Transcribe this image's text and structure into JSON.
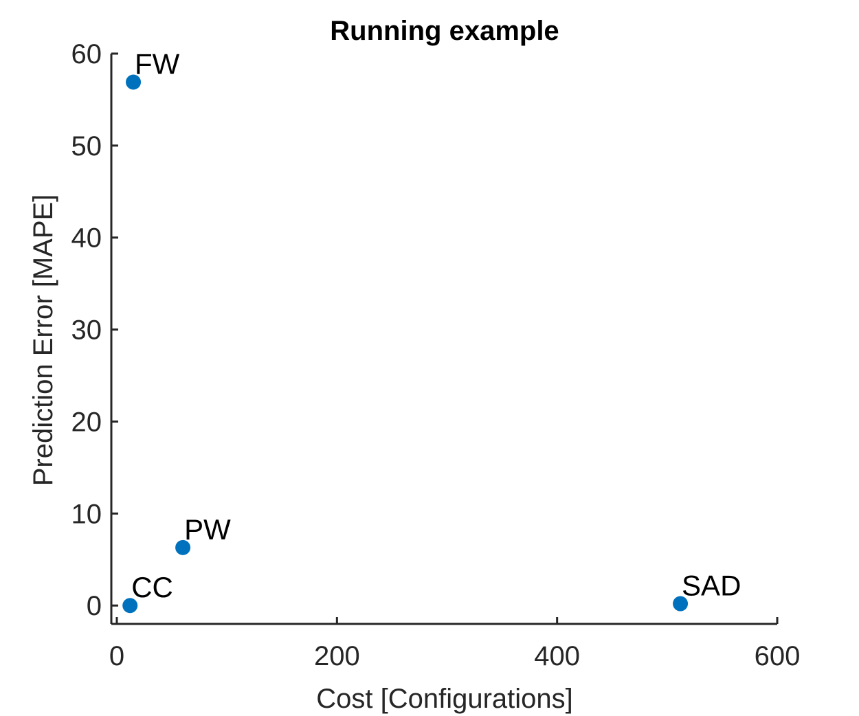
{
  "chart_data": {
    "type": "scatter",
    "title": "Running example",
    "xlabel": "Cost [Configurations]",
    "ylabel": "Prediction Error [MAPE]",
    "xlim": [
      -5,
      600
    ],
    "ylim": [
      -2,
      60
    ],
    "xticks": [
      0,
      200,
      400,
      600
    ],
    "yticks": [
      0,
      10,
      20,
      30,
      40,
      50,
      60
    ],
    "grid": false,
    "marker_color": "#0072BD",
    "points": [
      {
        "label": "FW",
        "x": 15,
        "y": 56.9
      },
      {
        "label": "PW",
        "x": 60,
        "y": 6.3
      },
      {
        "label": "CC",
        "x": 12,
        "y": 0.0
      },
      {
        "label": "SAD",
        "x": 512,
        "y": 0.2
      }
    ]
  }
}
